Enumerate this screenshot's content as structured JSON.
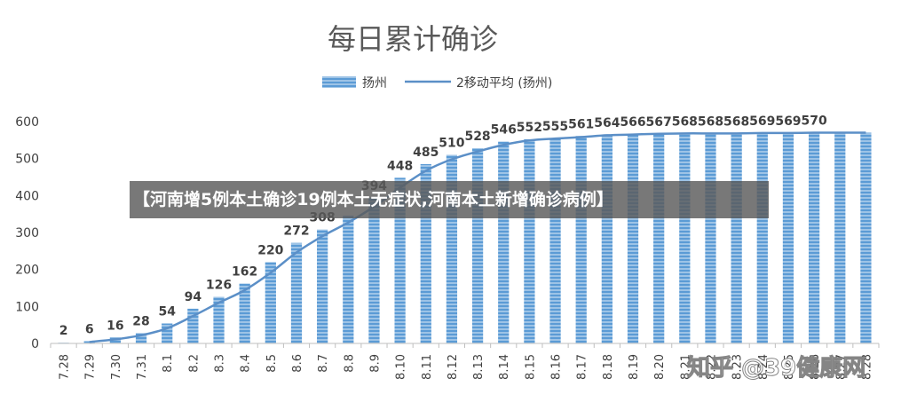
{
  "chart_data": {
    "type": "bar",
    "title": "每日累计确诊",
    "categories": [
      "7.28",
      "7.29",
      "7.30",
      "7.31",
      "8.1",
      "8.2",
      "8.3",
      "8.4",
      "8.5",
      "8.6",
      "8.7",
      "8.8",
      "8.9",
      "8.10",
      "8.11",
      "8.12",
      "8.13",
      "8.14",
      "8.15",
      "8.16",
      "8.17",
      "8.18",
      "8.19",
      "8.20",
      "8.21",
      "8.22",
      "8.23",
      "8.24",
      "8.25",
      "8.26",
      "8.27",
      "8.28"
    ],
    "series": [
      {
        "name": "扬州",
        "type": "bar",
        "color": "#5B9BD5",
        "values": [
          2,
          6,
          16,
          28,
          54,
          94,
          126,
          162,
          220,
          272,
          308,
          346,
          394,
          448,
          485,
          510,
          528,
          546,
          552,
          555,
          561,
          564,
          566,
          567,
          568,
          568,
          568,
          569,
          569,
          570,
          570,
          570
        ]
      },
      {
        "name": "2移动平均 (扬州)",
        "type": "line",
        "color": "#5B8FC7",
        "values": [
          null,
          4,
          11,
          22,
          41,
          74,
          110,
          144,
          191,
          246,
          290,
          327,
          370,
          421,
          467,
          498,
          519,
          537,
          549,
          554,
          558,
          563,
          565,
          567,
          568,
          568,
          568,
          569,
          569,
          570,
          570,
          570
        ]
      }
    ],
    "data_labels": [
      "2",
      "6",
      "16",
      "28",
      "54",
      "94",
      "126",
      "162",
      "220",
      "272",
      "308",
      "",
      "394",
      "448",
      "485",
      "510",
      "528",
      "546",
      "552",
      "555",
      "561",
      "564",
      "566",
      "567",
      "568",
      "568",
      "568",
      "569",
      "569",
      "570",
      "",
      ""
    ],
    "ylim": [
      0,
      600
    ],
    "yticks": [
      0,
      100,
      200,
      300,
      400,
      500,
      600
    ],
    "grid": false,
    "legend": "top"
  },
  "overlay": {
    "banner": "【河南增5例本土确诊19例本土无症状,河南本土新增确诊病例】",
    "watermark": "知乎 @39健康网"
  }
}
